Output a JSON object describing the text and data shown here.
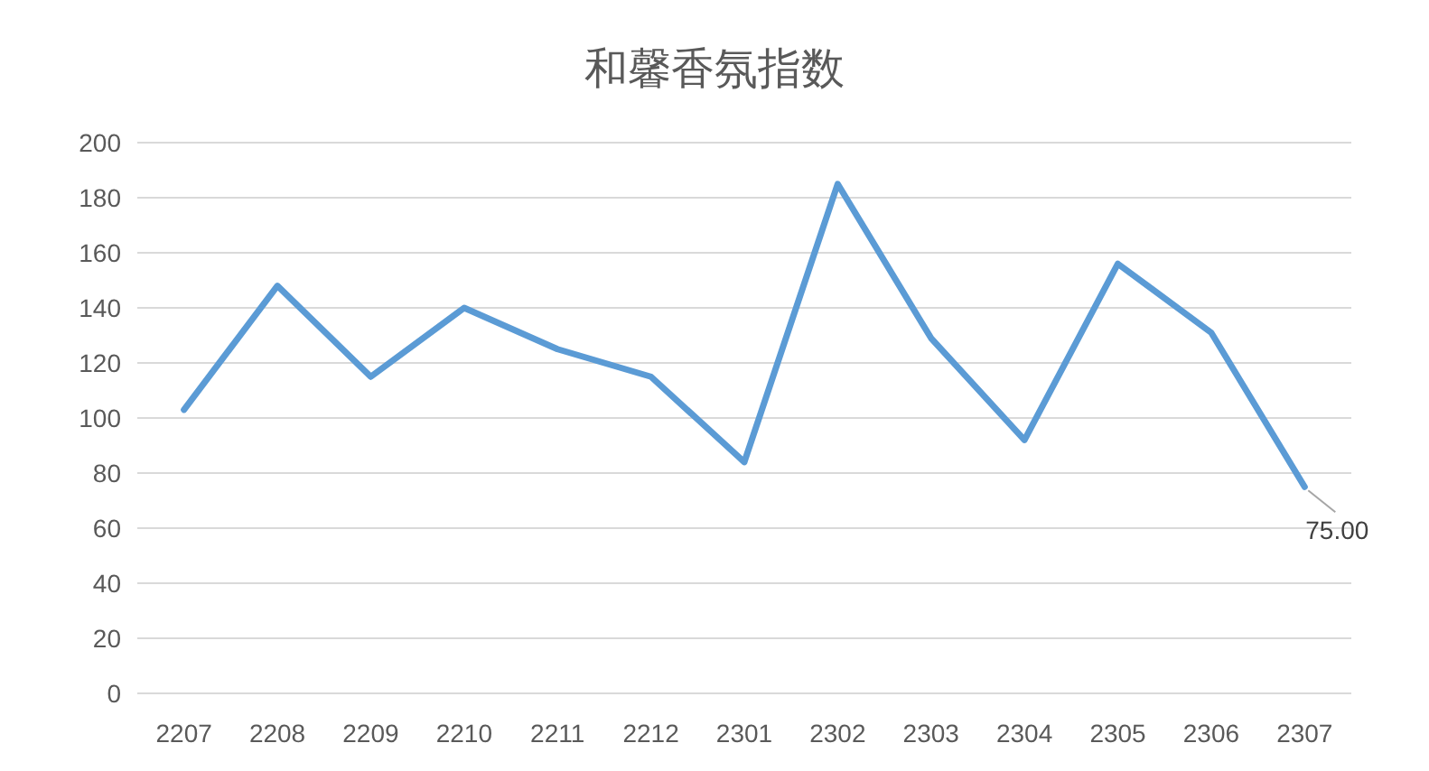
{
  "chart_data": {
    "type": "line",
    "title": "和馨香氛指数",
    "categories": [
      "2207",
      "2208",
      "2209",
      "2210",
      "2211",
      "2212",
      "2301",
      "2302",
      "2303",
      "2304",
      "2305",
      "2306",
      "2307"
    ],
    "series": [
      {
        "color": "#5b9bd5",
        "values": [
          103,
          148,
          115,
          140,
          125,
          115,
          84,
          185,
          129,
          92,
          156,
          131,
          75
        ],
        "value_labels": [
          null,
          null,
          null,
          null,
          null,
          null,
          null,
          null,
          null,
          null,
          null,
          null,
          "75.00"
        ]
      }
    ],
    "ylim": [
      0,
      200
    ],
    "yticks": [
      0,
      20,
      40,
      60,
      80,
      100,
      120,
      140,
      160,
      180,
      200
    ],
    "grid": "y",
    "marker": "none",
    "line_style": "solid"
  }
}
